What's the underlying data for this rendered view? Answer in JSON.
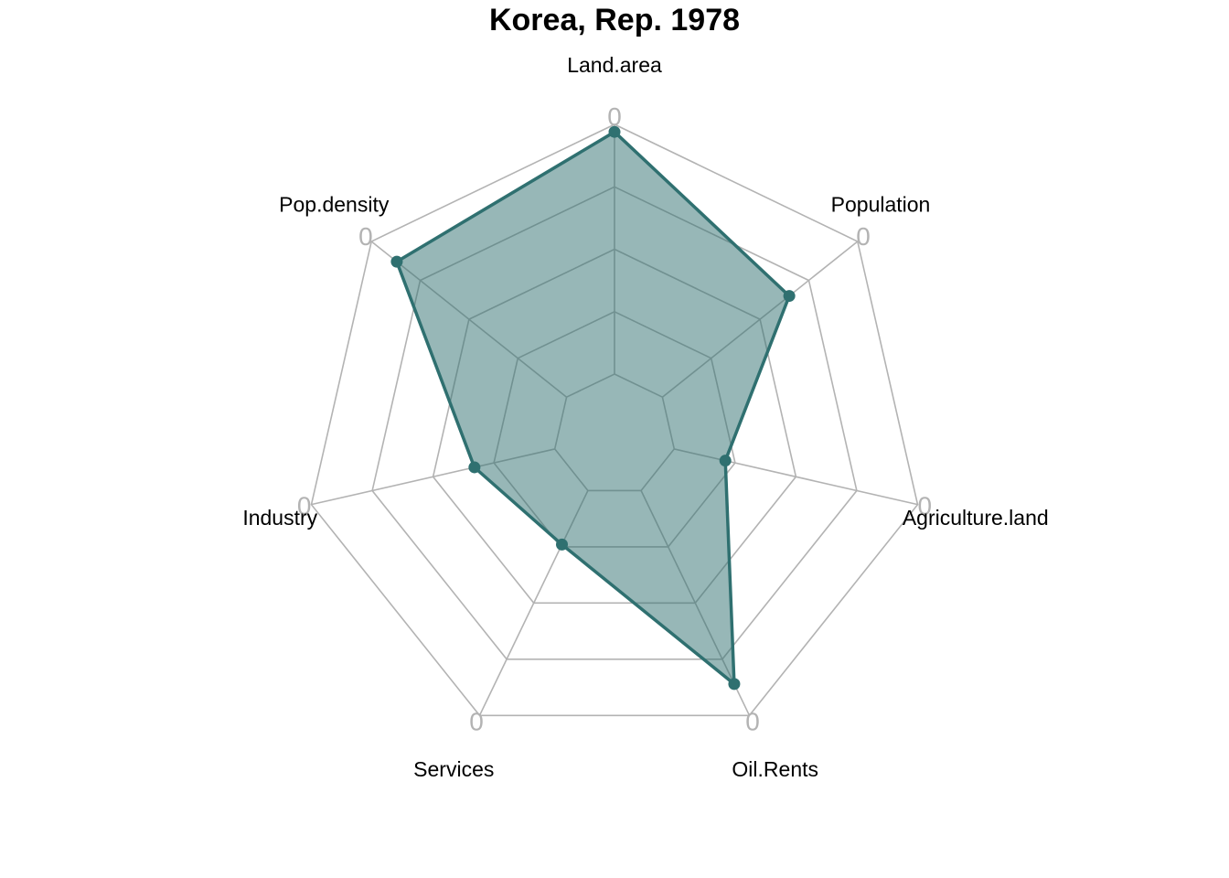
{
  "chart_data": {
    "type": "radar",
    "title": "Korea, Rep. 1978",
    "axes": [
      "Land.area",
      "Population",
      "Agriculture.land",
      "Oil.Rents",
      "Services",
      "Industry",
      "Pop.density"
    ],
    "series": [
      {
        "name": "",
        "values": [
          0.97,
          0.65,
          0.21,
          0.86,
          0.24,
          0.33,
          0.87
        ],
        "color": "#2f7070"
      }
    ],
    "range": [
      0,
      1
    ],
    "grid_levels": 5,
    "axis_tick_label": "0",
    "grid_color": "#b3b3b3",
    "legend": "none"
  }
}
